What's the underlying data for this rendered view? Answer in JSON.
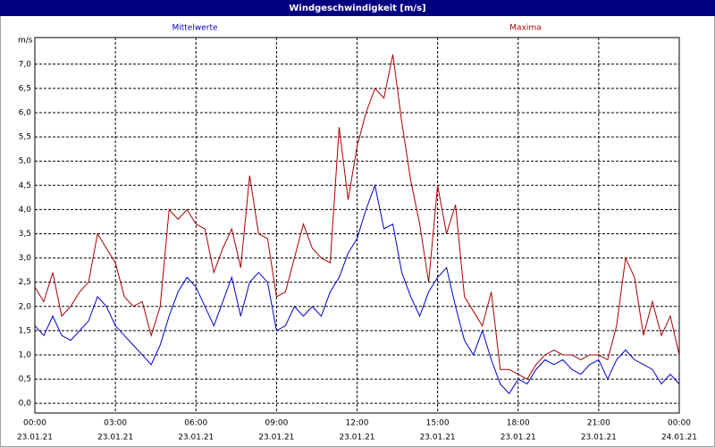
{
  "chart_data": {
    "type": "line",
    "title": "Windgeschwindigkeit [m/s]",
    "ylabel": "m/s",
    "x": [
      0,
      20,
      40,
      60,
      80,
      100,
      120,
      140,
      160,
      180,
      200,
      220,
      240,
      260,
      280,
      300,
      320,
      340,
      360,
      380,
      400,
      420,
      440,
      460,
      480,
      500,
      520,
      540,
      560,
      580,
      600,
      620,
      640,
      660,
      680,
      700,
      720,
      740,
      760,
      780,
      800,
      820,
      840,
      860,
      880,
      900,
      920,
      940,
      960,
      980,
      1000,
      1020,
      1040,
      1060,
      1080,
      1100,
      1120,
      1140,
      1160,
      1180,
      1200,
      1220,
      1240,
      1260,
      1280,
      1300,
      1320,
      1340,
      1360,
      1380,
      1400,
      1420,
      1440
    ],
    "series": [
      {
        "name": "Mittelwerte",
        "color": "#0000cc",
        "values": [
          1.6,
          1.4,
          1.8,
          1.4,
          1.3,
          1.5,
          1.7,
          2.2,
          2.0,
          1.6,
          1.4,
          1.2,
          1.0,
          0.8,
          1.2,
          1.8,
          2.3,
          2.6,
          2.4,
          2.0,
          1.6,
          2.1,
          2.6,
          1.8,
          2.5,
          2.7,
          2.5,
          1.5,
          1.6,
          2.0,
          1.8,
          2.0,
          1.8,
          2.3,
          2.6,
          3.1,
          3.4,
          4.0,
          4.5,
          3.6,
          3.7,
          2.7,
          2.2,
          1.8,
          2.3,
          2.6,
          2.8,
          2.0,
          1.3,
          1.0,
          1.5,
          0.9,
          0.4,
          0.2,
          0.5,
          0.4,
          0.7,
          0.9,
          0.8,
          0.9,
          0.7,
          0.6,
          0.8,
          0.9,
          0.5,
          0.9,
          1.1,
          0.9,
          0.8,
          0.7,
          0.4,
          0.6,
          0.4
        ]
      },
      {
        "name": "Maxima",
        "color": "#aa0000",
        "values": [
          2.4,
          2.1,
          2.7,
          1.8,
          2.0,
          2.3,
          2.5,
          3.5,
          3.2,
          2.9,
          2.2,
          2.0,
          2.1,
          1.4,
          2.0,
          4.0,
          3.8,
          4.0,
          3.7,
          3.6,
          2.7,
          3.2,
          3.6,
          2.8,
          4.7,
          3.5,
          3.4,
          2.2,
          2.3,
          3.0,
          3.7,
          3.2,
          3.0,
          2.9,
          5.7,
          4.2,
          5.3,
          6.0,
          6.5,
          6.3,
          7.2,
          5.8,
          4.6,
          3.7,
          2.5,
          4.5,
          3.5,
          4.1,
          2.2,
          1.9,
          1.6,
          2.3,
          0.7,
          0.7,
          0.6,
          0.5,
          0.8,
          1.0,
          1.1,
          1.0,
          1.0,
          0.9,
          1.0,
          1.0,
          0.9,
          1.6,
          3.0,
          2.6,
          1.4,
          2.1,
          1.4,
          1.8,
          1.0
        ]
      }
    ],
    "xlim": [
      0,
      1440
    ],
    "xticks": [
      {
        "value": 0,
        "label": "00:00",
        "date": "23.01.21"
      },
      {
        "value": 180,
        "label": "03:00",
        "date": "23.01.21"
      },
      {
        "value": 360,
        "label": "06:00",
        "date": "23.01.21"
      },
      {
        "value": 540,
        "label": "09:00",
        "date": "23.01.21"
      },
      {
        "value": 720,
        "label": "12:00",
        "date": "23.01.21"
      },
      {
        "value": 900,
        "label": "15:00",
        "date": "23.01.21"
      },
      {
        "value": 1080,
        "label": "18:00",
        "date": "23.01.21"
      },
      {
        "value": 1260,
        "label": "21:00",
        "date": "23.01.21"
      },
      {
        "value": 1440,
        "label": "00:00",
        "date": "24.01.21"
      }
    ],
    "ylim": [
      -0.2,
      7.55
    ],
    "yticks": [
      {
        "value": 0,
        "label": "0,0"
      },
      {
        "value": 0.5,
        "label": "0,5"
      },
      {
        "value": 1,
        "label": "1,0"
      },
      {
        "value": 1.5,
        "label": "1,5"
      },
      {
        "value": 2,
        "label": "2,0"
      },
      {
        "value": 2.5,
        "label": "2,5"
      },
      {
        "value": 3,
        "label": "3,0"
      },
      {
        "value": 3.5,
        "label": "3,5"
      },
      {
        "value": 4,
        "label": "4,0"
      },
      {
        "value": 4.5,
        "label": "4,5"
      },
      {
        "value": 5,
        "label": "5,0"
      },
      {
        "value": 5.5,
        "label": "5,5"
      },
      {
        "value": 6,
        "label": "6,0"
      },
      {
        "value": 6.5,
        "label": "6,5"
      },
      {
        "value": 7,
        "label": "7,0"
      }
    ],
    "grid": true
  }
}
